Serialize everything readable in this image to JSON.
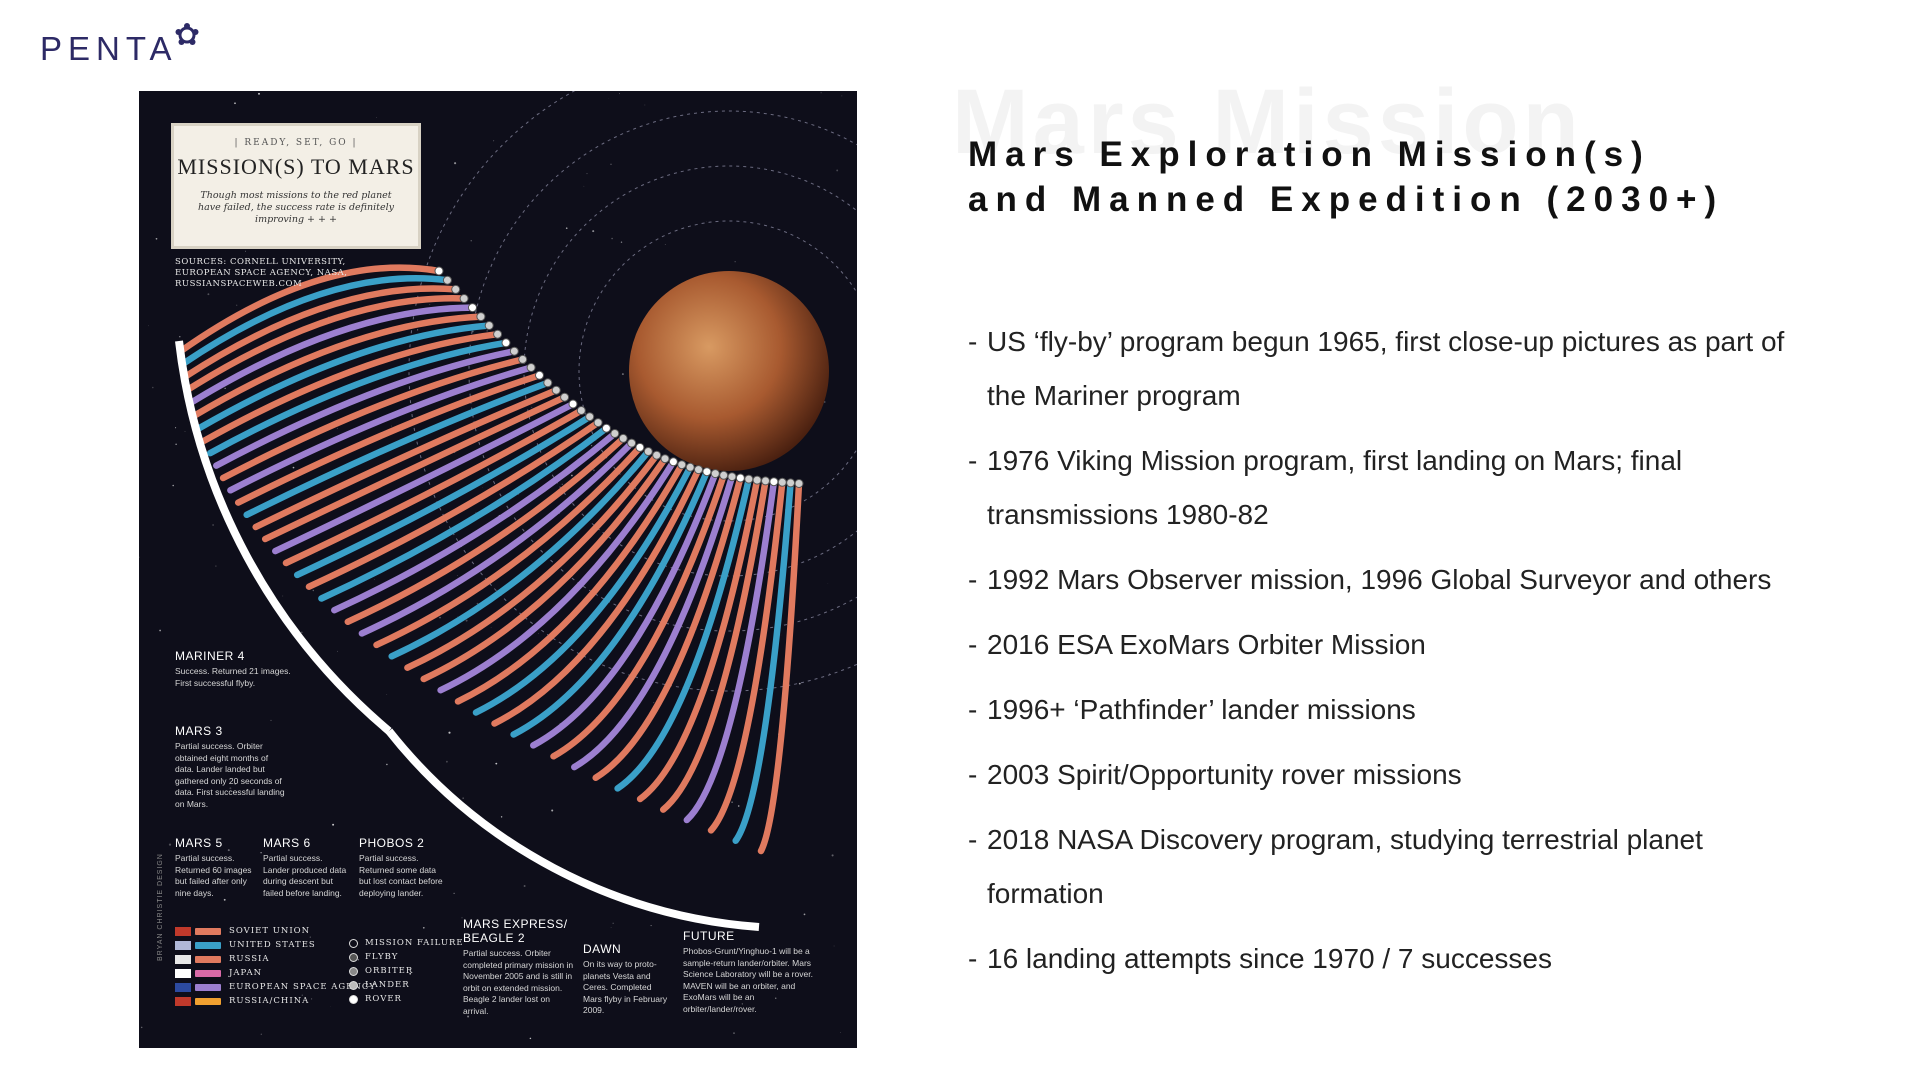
{
  "logo": {
    "text": "PENTA"
  },
  "infographic": {
    "kicker": "| READY, SET, GO |",
    "title": "MISSION(S) TO MARS",
    "subtitle": "Though most missions to the red planet have failed, the success rate is definitely improving + + +",
    "sources": "SOURCES: CORNELL UNIVERSITY, EUROPEAN SPACE AGENCY, NASA, RUSSIANSPACEWEB.COM",
    "arc_labels": [
      "MISSION FAILURE",
      "FLYBY",
      "ORBITER",
      "LANDER",
      "ROVER"
    ],
    "notes": [
      {
        "title": "MARINER 4",
        "body": "Success. Returned 21 images. First successful flyby."
      },
      {
        "title": "MARS 3",
        "body": "Partial success. Orbiter obtained eight months of data. Lander landed but gathered only 20 seconds of data. First successful landing on Mars."
      },
      {
        "title": "MARS 5",
        "body": "Partial success. Returned 60 images but failed after only nine days."
      },
      {
        "title": "MARS 6",
        "body": "Partial success. Lander produced data during descent but failed before landing."
      },
      {
        "title": "PHOBOS 2",
        "body": "Partial success. Returned some data but lost contact before deploying lander."
      },
      {
        "title": "MARS EXPRESS/ BEAGLE 2",
        "body": "Partial success. Orbiter completed primary mission in November 2005 and is still in orbit on extended mission. Beagle 2 lander lost on arrival."
      },
      {
        "title": "DAWN",
        "body": "On its way to proto-planets Vesta and Ceres. Completed Mars flyby in February 2009."
      },
      {
        "title": "FUTURE",
        "body": "Phobos-Grunt/Yinghuo-1 will be a sample-return lander/orbiter. Mars Science Laboratory will be a rover. MAVEN will be an orbiter, and ExoMars will be an orbiter/lander/rover."
      }
    ],
    "legend_countries": [
      {
        "label": "SOVIET UNION",
        "color": "#e07a5f",
        "flag": "#c0392b"
      },
      {
        "label": "UNITED STATES",
        "color": "#3aa0c8",
        "flag": "#b0b8d8"
      },
      {
        "label": "RUSSIA",
        "color": "#e07a5f",
        "flag": "#e8e8e8"
      },
      {
        "label": "JAPAN",
        "color": "#d96aa8",
        "flag": "#ffffff"
      },
      {
        "label": "EUROPEAN SPACE AGENCY",
        "color": "#9c7fd0",
        "flag": "#2c4aa0"
      },
      {
        "label": "RUSSIA/CHINA",
        "color": "#f0a030",
        "flag": "#c0392b"
      }
    ],
    "legend_types": [
      "MISSION FAILURE",
      "FLYBY",
      "ORBITER",
      "LANDER",
      "ROVER"
    ],
    "credit": "BRYAN CHRISTIE DESIGN"
  },
  "slide": {
    "ghost_text": "Mars Mission",
    "title_line1": "Mars Exploration Mission(s)",
    "title_line2": "and Manned Expedition (2030+)",
    "bullets": [
      "US ‘fly-by’ program begun 1965, first close-up pictures as part of the Mariner program",
      "1976 Viking Mission program, first landing on Mars; final transmissions 1980-82",
      "1992 Mars Observer mission, 1996 Global Surveyor and others",
      "2016 ESA ExoMars Orbiter Mission",
      "1996+  ‘Pathfinder’ lander missions",
      "2003  Spirit/Opportunity rover missions",
      "2018 NASA Discovery program, studying terrestrial planet formation",
      "16 landing attempts since 1970 / 7 successes"
    ],
    "bullet_dash": "-"
  }
}
